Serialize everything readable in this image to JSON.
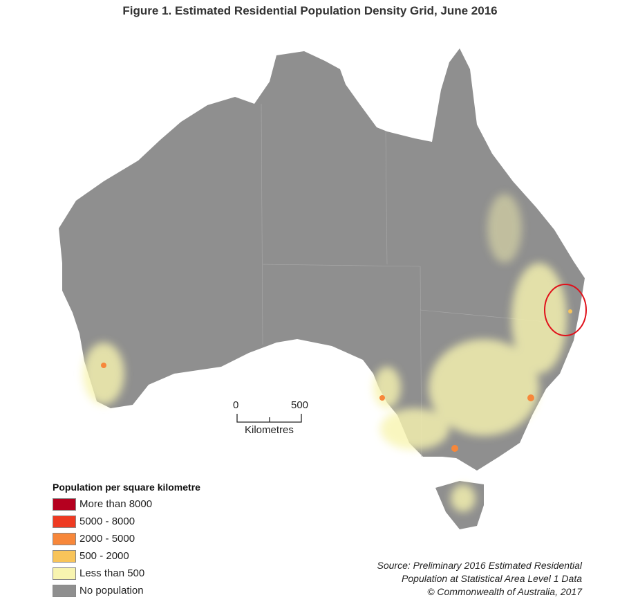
{
  "title": "Figure 1. Estimated Residential Population Density Grid, June 2016",
  "scale_bar": {
    "start_label": "0",
    "end_label": "500",
    "unit_label": "Kilometres"
  },
  "legend": {
    "title": "Population per square kilometre",
    "items": [
      {
        "label": "More than 8000",
        "color": "#b5001f"
      },
      {
        "label": "5000 - 8000",
        "color": "#ee3a22"
      },
      {
        "label": "2000 - 5000",
        "color": "#f7873a"
      },
      {
        "label": "500 - 2000",
        "color": "#f8c45a"
      },
      {
        "label": "Less than 500",
        "color": "#f8f4b0"
      },
      {
        "label": "No population",
        "color": "#8f8f8f"
      }
    ]
  },
  "annotation": {
    "shape": "circle",
    "color": "#e0101a"
  },
  "source": {
    "line1": "Source: Preliminary 2016 Estimated Residential",
    "line2": "Population at Statistical Area Level 1 Data",
    "line3": "© Commonwealth of Australia, 2017"
  }
}
